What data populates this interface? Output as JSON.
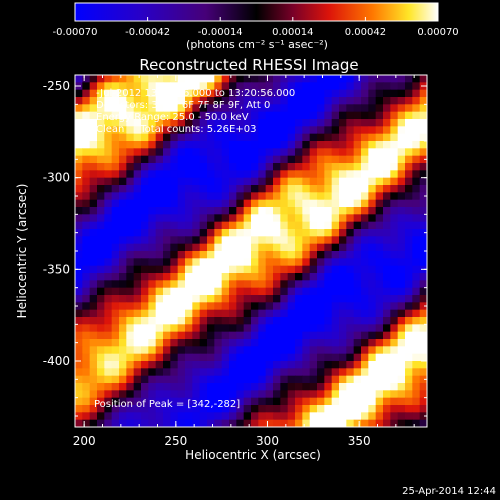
{
  "chart_data": {
    "type": "heatmap",
    "title": "Reconstructed RHESSI Image",
    "xlabel": "Heliocentric X (arcsec)",
    "ylabel": "Heliocentric Y (arcsec)",
    "xlim": [
      195,
      387
    ],
    "ylim": [
      -436,
      -244
    ],
    "x_ticks": [
      "200",
      "250",
      "300",
      "350"
    ],
    "y_ticks": [
      "-250",
      "-300",
      "-350",
      "-400"
    ],
    "x_tick_values": [
      200,
      250,
      300,
      350
    ],
    "y_tick_values": [
      -250,
      -300,
      -350,
      -400
    ],
    "colorbar": {
      "min": -0.0007,
      "max": 0.0007,
      "ticks": [
        "-0.00070",
        "-0.00042",
        "-0.00014",
        "0.00014",
        "0.00042",
        "0.00070"
      ],
      "tick_values": [
        -0.0007,
        -0.00042,
        -0.00014,
        0.00014,
        0.00042,
        0.0007
      ],
      "units": "(photons cm⁻² s⁻¹ asec⁻²)",
      "colormap": "rhessi-blue-purple-red-yellow-white"
    },
    "annotations": [
      "-Jul-2012 13:17:36.000 to 13:20:56.000",
      "Detectors: 3F 5F 6F 7F 8F 9F, Att 0",
      "Energy Range: 25.0 - 50.0 keV",
      "Clean     Total counts: 5.26E+03"
    ],
    "peak_label": "Position of Peak = [342,-282]",
    "peak_position": [
      342,
      -282
    ],
    "band_structure": {
      "description": "Diagonal alternating bright (yellow/white) and dark (blue/purple) stripes running from lower-left to upper-right.",
      "bright_band_peak_value": 0.0007,
      "dark_band_min_value": -0.0007
    }
  },
  "footer": {
    "timestamp": "25-Apr-2014 12:44"
  },
  "colors": {
    "background": "#000000",
    "text": "#ffffff",
    "axis": "#ffffff"
  }
}
